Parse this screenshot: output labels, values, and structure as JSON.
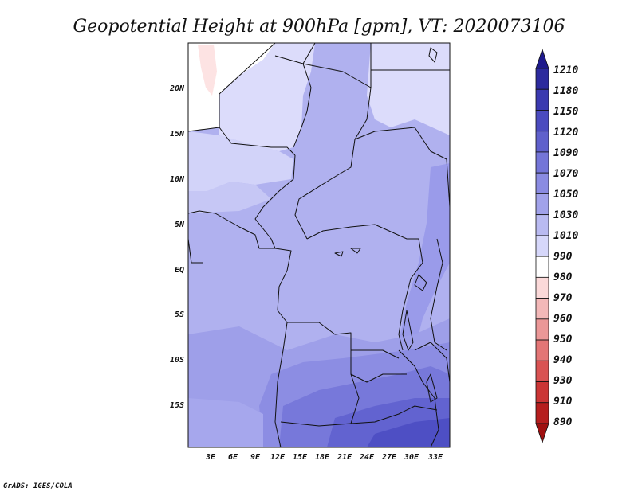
{
  "title": "Geopotential Height at 900hPa [gpm], VT: 2020073106",
  "credit": "GrADS: IGES/COLA",
  "map": {
    "lat_labels": [
      "20N",
      "15N",
      "10N",
      "5N",
      "EQ",
      "5S",
      "10S",
      "15S"
    ],
    "lon_labels": [
      "3E",
      "6E",
      "9E",
      "12E",
      "15E",
      "18E",
      "21E",
      "24E",
      "27E",
      "30E",
      "33E"
    ]
  },
  "colorbar": {
    "levels": [
      "1210",
      "1180",
      "1150",
      "1120",
      "1090",
      "1070",
      "1050",
      "1030",
      "1010",
      "990",
      "980",
      "970",
      "960",
      "950",
      "940",
      "930",
      "910",
      "890"
    ],
    "colors": [
      "#1e1a8c",
      "#2c2a9e",
      "#3a39b0",
      "#4b4bbf",
      "#5f60cc",
      "#7475d8",
      "#8a8be2",
      "#a1a2ea",
      "#b9baf1",
      "#d6d7fa",
      "#ffffff",
      "#fbd9d9",
      "#f3b8b8",
      "#eb9797",
      "#e37575",
      "#d95252",
      "#cb3535",
      "#b61e1e",
      "#9f1010"
    ]
  },
  "colors": {
    "ocean_fill": "#a8a9ee",
    "land_low": "#b6b7f1",
    "land_pale": "#dcdcfb",
    "sahara": "#ffffff",
    "high_south": "#6f70d9",
    "highest_south": "#4a4ac4"
  }
}
